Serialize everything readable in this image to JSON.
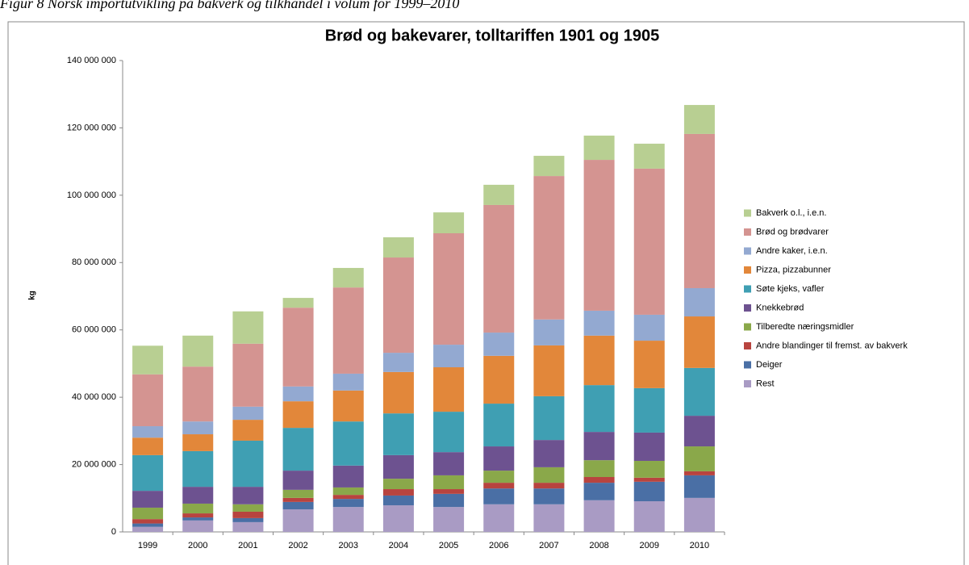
{
  "caption": "Figur 8 Norsk importutvikling på bakverk og tilkhandel i volum for 1999–2010",
  "chart_data": {
    "type": "bar",
    "stacked": true,
    "title": "Brød og bakevarer, tolltariffen 1901 og 1905",
    "y_label": "kg",
    "categories": [
      "1999",
      "2000",
      "2001",
      "2002",
      "2003",
      "2004",
      "2005",
      "2006",
      "2007",
      "2008",
      "2009",
      "2010"
    ],
    "series": [
      {
        "name": "Rest",
        "color": "#a99bc4",
        "values": [
          1500000,
          3400000,
          2900000,
          6700000,
          7400000,
          7900000,
          7400000,
          8200000,
          8200000,
          9400000,
          9100000,
          10100000
        ]
      },
      {
        "name": "Deiger",
        "color": "#4a6fa5",
        "values": [
          1000000,
          900000,
          1200000,
          2200000,
          2400000,
          2900000,
          3900000,
          4700000,
          4700000,
          5200000,
          5800000,
          6700000
        ]
      },
      {
        "name": "Andre blandinger til fremst. av bakverk",
        "color": "#b8443f",
        "values": [
          1300000,
          1200000,
          1900000,
          1200000,
          1200000,
          1900000,
          1400000,
          1700000,
          1700000,
          1700000,
          1200000,
          1200000
        ]
      },
      {
        "name": "Tilberedte næringsmidler",
        "color": "#8aa84a",
        "values": [
          3400000,
          2900000,
          2200000,
          2400000,
          2200000,
          3100000,
          4100000,
          3600000,
          4600000,
          5000000,
          5000000,
          7400000
        ]
      },
      {
        "name": "Knekkebrød",
        "color": "#6d5290",
        "values": [
          5000000,
          5000000,
          5200000,
          5700000,
          6500000,
          7000000,
          6900000,
          7200000,
          8100000,
          8400000,
          8400000,
          9100000
        ]
      },
      {
        "name": "Søte kjeks, vafler",
        "color": "#3f9fb3",
        "values": [
          10600000,
          10600000,
          13700000,
          12700000,
          13100000,
          12400000,
          12000000,
          12700000,
          13000000,
          13900000,
          13200000,
          14200000
        ]
      },
      {
        "name": "Pizza, pizzabunner",
        "color": "#e2873a",
        "values": [
          5200000,
          5000000,
          6200000,
          7900000,
          9200000,
          12300000,
          13200000,
          14200000,
          15100000,
          14700000,
          14100000,
          15300000
        ]
      },
      {
        "name": "Andre kaker, i.e.n.",
        "color": "#93a9d1",
        "values": [
          3400000,
          3800000,
          3900000,
          4400000,
          5000000,
          5700000,
          6700000,
          6900000,
          7700000,
          7400000,
          7700000,
          8400000
        ]
      },
      {
        "name": "Brød og brødvarer",
        "color": "#d49491",
        "values": [
          15400000,
          16300000,
          18700000,
          23400000,
          25600000,
          28300000,
          33100000,
          37900000,
          42600000,
          44800000,
          43400000,
          45800000
        ]
      },
      {
        "name": "Bakverk o.l., i.e.n.",
        "color": "#b8cf92",
        "values": [
          8500000,
          9200000,
          9600000,
          2900000,
          5800000,
          6000000,
          6200000,
          6000000,
          6000000,
          7200000,
          7400000,
          8600000
        ]
      }
    ],
    "ylim": [
      0,
      140000000
    ],
    "yticks": [
      0,
      {
        "value": 20000000,
        "label": "20 000 000"
      },
      {
        "value": 40000000,
        "label": "40 000 000"
      },
      {
        "value": 60000000,
        "label": "60 000 000"
      },
      {
        "value": 80000000,
        "label": "80 000 000"
      },
      {
        "value": 100000000,
        "label": "100 000 000"
      },
      {
        "value": 120000000,
        "label": "120 000 000"
      },
      {
        "value": 140000000,
        "label": "140 000 000"
      }
    ],
    "grid": false,
    "legend": "right"
  }
}
